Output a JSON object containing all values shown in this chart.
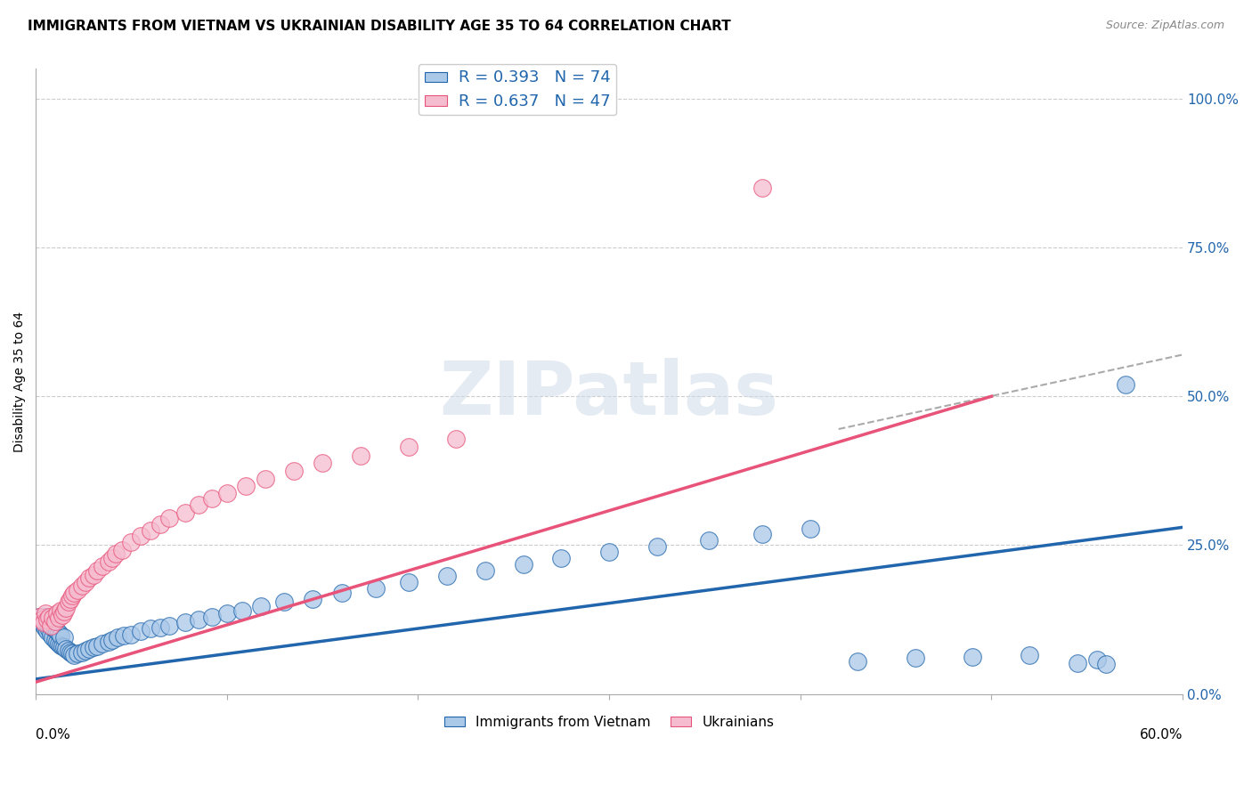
{
  "title": "IMMIGRANTS FROM VIETNAM VS UKRAINIAN DISABILITY AGE 35 TO 64 CORRELATION CHART",
  "source": "Source: ZipAtlas.com",
  "ylabel": "Disability Age 35 to 64",
  "xlim": [
    0.0,
    0.6
  ],
  "ylim": [
    0.0,
    1.05
  ],
  "ytick_vals": [
    0.0,
    0.25,
    0.5,
    0.75,
    1.0
  ],
  "ytick_labels": [
    "0.0%",
    "25.0%",
    "50.0%",
    "75.0%",
    "100.0%"
  ],
  "vietnam_scatter_x": [
    0.002,
    0.003,
    0.004,
    0.004,
    0.005,
    0.005,
    0.006,
    0.006,
    0.007,
    0.007,
    0.008,
    0.008,
    0.009,
    0.009,
    0.01,
    0.01,
    0.011,
    0.011,
    0.012,
    0.012,
    0.013,
    0.013,
    0.014,
    0.015,
    0.015,
    0.016,
    0.017,
    0.018,
    0.019,
    0.02,
    0.022,
    0.024,
    0.026,
    0.028,
    0.03,
    0.032,
    0.035,
    0.038,
    0.04,
    0.043,
    0.046,
    0.05,
    0.055,
    0.06,
    0.065,
    0.07,
    0.078,
    0.085,
    0.092,
    0.1,
    0.108,
    0.118,
    0.13,
    0.145,
    0.16,
    0.178,
    0.195,
    0.215,
    0.235,
    0.255,
    0.275,
    0.3,
    0.325,
    0.352,
    0.38,
    0.405,
    0.43,
    0.46,
    0.49,
    0.52,
    0.545,
    0.555,
    0.56,
    0.57
  ],
  "vietnam_scatter_y": [
    0.13,
    0.12,
    0.115,
    0.125,
    0.11,
    0.13,
    0.105,
    0.12,
    0.108,
    0.118,
    0.1,
    0.115,
    0.095,
    0.112,
    0.09,
    0.108,
    0.088,
    0.105,
    0.085,
    0.102,
    0.082,
    0.098,
    0.08,
    0.078,
    0.095,
    0.075,
    0.072,
    0.07,
    0.068,
    0.065,
    0.068,
    0.07,
    0.072,
    0.075,
    0.078,
    0.08,
    0.085,
    0.088,
    0.09,
    0.095,
    0.098,
    0.1,
    0.105,
    0.11,
    0.112,
    0.115,
    0.12,
    0.125,
    0.13,
    0.135,
    0.14,
    0.148,
    0.155,
    0.16,
    0.17,
    0.178,
    0.188,
    0.198,
    0.208,
    0.218,
    0.228,
    0.238,
    0.248,
    0.258,
    0.268,
    0.278,
    0.055,
    0.06,
    0.062,
    0.065,
    0.052,
    0.058,
    0.05,
    0.52
  ],
  "ukraine_scatter_x": [
    0.002,
    0.003,
    0.004,
    0.005,
    0.006,
    0.007,
    0.008,
    0.009,
    0.01,
    0.011,
    0.012,
    0.013,
    0.014,
    0.015,
    0.016,
    0.017,
    0.018,
    0.019,
    0.02,
    0.022,
    0.024,
    0.026,
    0.028,
    0.03,
    0.032,
    0.035,
    0.038,
    0.04,
    0.042,
    0.045,
    0.05,
    0.055,
    0.06,
    0.065,
    0.07,
    0.078,
    0.085,
    0.092,
    0.1,
    0.11,
    0.12,
    0.135,
    0.15,
    0.17,
    0.195,
    0.22,
    0.38
  ],
  "ukraine_scatter_y": [
    0.13,
    0.125,
    0.12,
    0.135,
    0.125,
    0.13,
    0.115,
    0.128,
    0.122,
    0.135,
    0.128,
    0.14,
    0.132,
    0.138,
    0.145,
    0.155,
    0.16,
    0.165,
    0.17,
    0.175,
    0.182,
    0.188,
    0.195,
    0.2,
    0.208,
    0.215,
    0.222,
    0.228,
    0.235,
    0.242,
    0.255,
    0.265,
    0.275,
    0.285,
    0.295,
    0.305,
    0.318,
    0.328,
    0.338,
    0.35,
    0.362,
    0.375,
    0.388,
    0.4,
    0.415,
    0.428,
    0.85
  ],
  "vietnam_line_x": [
    0.0,
    0.6
  ],
  "vietnam_line_y": [
    0.025,
    0.28
  ],
  "ukraine_line_x": [
    0.0,
    0.5
  ],
  "ukraine_line_y": [
    0.02,
    0.5
  ],
  "dash_line_x": [
    0.42,
    0.6
  ],
  "dash_line_y": [
    0.445,
    0.57
  ],
  "vietnam_line_color": "#2166ac",
  "ukraine_line_color": "#e8537a",
  "vietnam_scatter_color": "#aac8e8",
  "ukraine_scatter_color": "#f5bccf",
  "grid_color": "#cccccc",
  "background_color": "#ffffff",
  "watermark_color": "#d0dce8"
}
